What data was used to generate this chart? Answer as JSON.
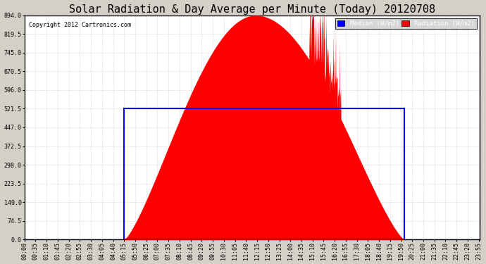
{
  "title": "Solar Radiation & Day Average per Minute (Today) 20120708",
  "copyright": "Copyright 2012 Cartronics.com",
  "ylabel_ticks": [
    0.0,
    74.5,
    149.0,
    223.5,
    298.0,
    372.5,
    447.0,
    521.5,
    596.0,
    670.5,
    745.0,
    819.5,
    894.0
  ],
  "ymax": 894.0,
  "ymin": 0.0,
  "bg_color": "#d4d0c8",
  "plot_bg": "#ffffff",
  "radiation_color": "#ff0000",
  "median_color": "#0000ff",
  "grid_color": "#888888",
  "legend_median_bg": "#0000ff",
  "legend_radiation_bg": "#ff0000",
  "title_fontsize": 11,
  "tick_fontsize": 6,
  "sunrise_minute": 315,
  "sunset_minute": 1200,
  "median_value": 521.5,
  "peak_minute": 730,
  "peak_value": 894.0,
  "tick_step": 35,
  "x_tick_labels": [
    "00:00",
    "00:35",
    "01:10",
    "01:45",
    "02:20",
    "02:55",
    "03:30",
    "04:05",
    "04:40",
    "05:15",
    "05:50",
    "06:25",
    "07:00",
    "07:35",
    "08:10",
    "08:45",
    "09:20",
    "09:55",
    "10:30",
    "11:05",
    "11:40",
    "12:15",
    "12:50",
    "13:25",
    "14:00",
    "14:35",
    "15:10",
    "15:45",
    "16:20",
    "16:55",
    "17:30",
    "18:05",
    "18:40",
    "19:15",
    "19:50",
    "20:25",
    "21:00",
    "21:35",
    "22:10",
    "22:45",
    "23:20",
    "23:55"
  ]
}
